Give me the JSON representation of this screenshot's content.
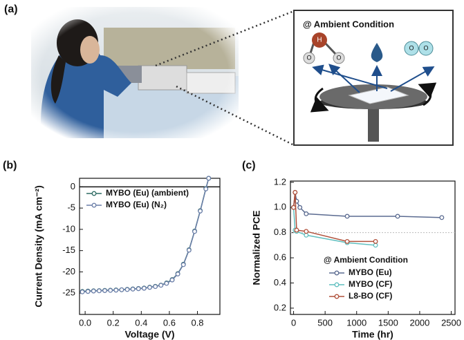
{
  "panel_labels": [
    "(a)",
    "(b)",
    "(c)"
  ],
  "diagram": {
    "title": "@ Ambient Condition",
    "atom_labels": [
      "H",
      "O",
      "O",
      "O",
      "O"
    ]
  },
  "chart_data": [
    {
      "type": "line",
      "ylabel": "Current Density (mA cm⁻²)",
      "xlabel": "Voltage (V)",
      "x": [
        -0.02,
        0.02,
        0.06,
        0.1,
        0.14,
        0.18,
        0.22,
        0.26,
        0.3,
        0.34,
        0.38,
        0.42,
        0.46,
        0.5,
        0.54,
        0.58,
        0.62,
        0.66,
        0.7,
        0.74,
        0.78,
        0.82,
        0.86,
        0.88
      ],
      "series": [
        {
          "name": "MYBO (Eu) (ambient)",
          "color": "#2e6b63",
          "values": [
            -24.6,
            -24.5,
            -24.45,
            -24.4,
            -24.35,
            -24.3,
            -24.25,
            -24.2,
            -24.1,
            -24.0,
            -23.9,
            -23.8,
            -23.6,
            -23.4,
            -23.1,
            -22.6,
            -21.8,
            -20.4,
            -18.2,
            -14.8,
            -10.4,
            -5.6,
            -0.4,
            2
          ]
        },
        {
          "name": "MYBO (Eu) (N₂)",
          "color": "#6a7ea8",
          "values": [
            -24.7,
            -24.6,
            -24.5,
            -24.45,
            -24.4,
            -24.35,
            -24.3,
            -24.2,
            -24.15,
            -24.05,
            -23.95,
            -23.85,
            -23.65,
            -23.45,
            -23.15,
            -22.7,
            -21.9,
            -20.5,
            -18.3,
            -14.9,
            -10.5,
            -5.7,
            -0.5,
            2
          ]
        }
      ],
      "xlim": [
        -0.04,
        0.96
      ],
      "ylim": [
        -30,
        2
      ],
      "xticks": [
        {
          "value": 0,
          "label": "0.0"
        },
        0.2,
        0.4,
        0.6,
        0.8
      ],
      "yticks": [
        0,
        -5,
        -10,
        -15,
        -20,
        -25
      ],
      "hline": 0,
      "hline_style": "solid",
      "legend": "upper left"
    },
    {
      "type": "line",
      "ylabel": "Normalized PCE",
      "xlabel": "Time (hr)",
      "series": [
        {
          "name": "MYBO (Eu)",
          "color": "#5a6a90",
          "x": [
            0,
            24,
            48,
            100,
            200,
            850,
            1650,
            2350
          ],
          "values": [
            1.0,
            1.12,
            1.05,
            1.0,
            0.95,
            0.93,
            0.93,
            0.92
          ]
        },
        {
          "name": "MYBO (CF)",
          "color": "#5fbfbf",
          "x": [
            0,
            24,
            48,
            200,
            850,
            1300
          ],
          "values": [
            1.0,
            0.82,
            0.81,
            0.78,
            0.72,
            0.7
          ]
        },
        {
          "name": "L8-BO (CF)",
          "color": "#b0503a",
          "x": [
            0,
            24,
            48,
            200,
            850,
            1300
          ],
          "values": [
            1.0,
            1.12,
            0.82,
            0.81,
            0.73,
            0.73
          ]
        }
      ],
      "xlim": [
        -50,
        2560
      ],
      "ylim": [
        0.15,
        1.21
      ],
      "xticks": [
        0,
        500,
        1000,
        1500,
        2000,
        2500
      ],
      "yticks": [
        1.2,
        {
          "value": 1,
          "label": "1.0"
        },
        0.8,
        0.6,
        0.4,
        0.2
      ],
      "hline": 0.8,
      "hline_style": "dashed",
      "legend": "lower right",
      "legend_title": "@ Ambient Condition"
    }
  ]
}
